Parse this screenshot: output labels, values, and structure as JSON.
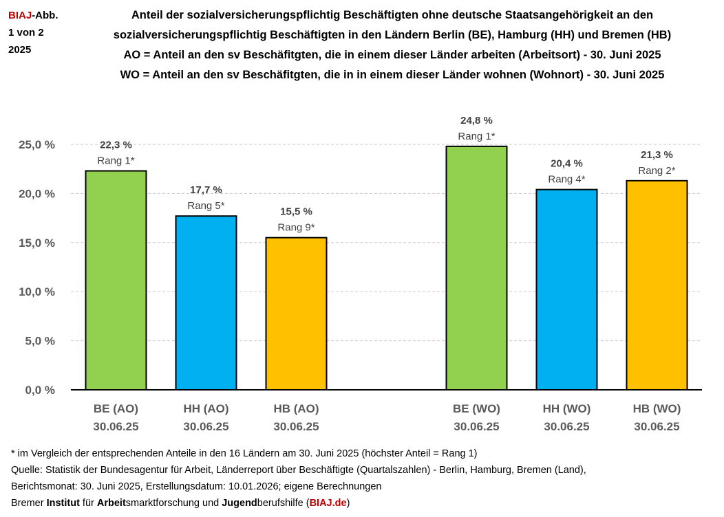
{
  "corner": {
    "brand": "BIAJ",
    "suffix": "-Abb.",
    "line2": "1 von 2",
    "line3": "2025"
  },
  "chart_data": {
    "type": "bar",
    "title": [
      "Anteil der sozialversicherungspflichtig  Beschäftigten ohne deutsche Staatsangehörigkeit an den",
      "sozialversicherungspflichtig  Beschäftigten in den Ländern Berlin (BE), Hamburg (HH) und Bremen (HB)",
      "AO = Anteil an den sv Beschäfitgten, die in einem dieser Länder arbeiten (Arbeitsort) - 30. Juni 2025",
      "WO = Anteil an den sv Beschäfitgten, die in in einem dieser Länder wohnen (Wohnort) - 30. Juni 2025"
    ],
    "categories": [
      [
        "BE (AO)",
        "30.06.25"
      ],
      [
        "HH (AO)",
        "30.06.25"
      ],
      [
        "HB (AO)",
        "30.06.25"
      ],
      [
        "BE (WO)",
        "30.06.25"
      ],
      [
        "HH (WO)",
        "30.06.25"
      ],
      [
        "HB (WO)",
        "30.06.25"
      ]
    ],
    "values": [
      22.3,
      17.7,
      15.5,
      24.8,
      20.4,
      21.3
    ],
    "data_labels": [
      "22,3 %",
      "17,7 %",
      "15,5 %",
      "24,8 %",
      "20,4 %",
      "21,3 %"
    ],
    "ranks": [
      "Rang 1*",
      "Rang 5*",
      "Rang 9*",
      "Rang 1*",
      "Rang 4*",
      "Rang 2*"
    ],
    "colors": [
      "#92D050",
      "#00B0F0",
      "#FFC000",
      "#92D050",
      "#00B0F0",
      "#FFC000"
    ],
    "ylim": [
      0,
      25
    ],
    "yticks": [
      0,
      5,
      10,
      15,
      20,
      25
    ],
    "ytick_labels": [
      "0,0 %",
      "5,0 %",
      "10,0 %",
      "15,0 %",
      "20,0 %",
      "25,0 %"
    ],
    "grid": true,
    "xlabel": "",
    "ylabel": ""
  },
  "footer": {
    "note": "* im Vergleich der entsprechenden Anteile in den 16 Ländern am 30. Juni 2025 (höchster Anteil = Rang 1)",
    "source1": "Quelle: Statistik der Bundesagentur für Arbeit, Länderreport über Beschäftigte (Quartalszahlen) - Berlin, Hamburg, Bremen (Land),",
    "source2": "Berichtsmonat: 30. Juni 2025, Erstellungsdatum: 10.01.2026; eigene Berechnungen",
    "org": {
      "p1": "Bremer ",
      "b1": "Institut",
      "p2": " für ",
      "b2": "Arbeit",
      "p3": "smarktforschung und ",
      "b3": "Jugend",
      "p4": "berufshilfe (",
      "link": "BIAJ.de",
      "p5": ")"
    }
  }
}
